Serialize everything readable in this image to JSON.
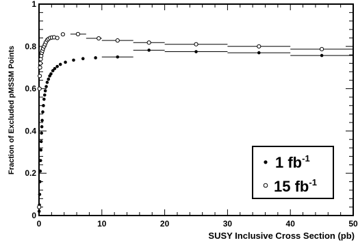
{
  "chart_data": {
    "type": "scatter",
    "title": "",
    "xlabel": "SUSY Inclusive Cross Section (pb)",
    "ylabel": "Fraction of Excluded pMSSM Points",
    "xlim": [
      0,
      50
    ],
    "ylim": [
      0,
      1
    ],
    "x_ticks": [
      0,
      10,
      20,
      30,
      40,
      50
    ],
    "x_tick_labels": [
      "0",
      "10",
      "20",
      "30",
      "40",
      "50"
    ],
    "y_ticks": [
      0,
      0.2,
      0.4,
      0.6,
      0.8,
      1
    ],
    "y_tick_labels": [
      "0",
      "0.2",
      "0.4",
      "0.6",
      "0.8",
      "1"
    ],
    "grid": false,
    "legend_position": "bottom-right",
    "series": [
      {
        "name": "1 fb",
        "name_superscript": "-1",
        "marker": "filled-circle",
        "color": "#000000",
        "points": [
          {
            "x": 0.02,
            "y": 0.02
          },
          {
            "x": 0.06,
            "y": 0.05
          },
          {
            "x": 0.1,
            "y": 0.1
          },
          {
            "x": 0.15,
            "y": 0.16
          },
          {
            "x": 0.2,
            "y": 0.21
          },
          {
            "x": 0.25,
            "y": 0.26
          },
          {
            "x": 0.3,
            "y": 0.31
          },
          {
            "x": 0.35,
            "y": 0.35
          },
          {
            "x": 0.4,
            "y": 0.39
          },
          {
            "x": 0.45,
            "y": 0.42
          },
          {
            "x": 0.5,
            "y": 0.45
          },
          {
            "x": 0.6,
            "y": 0.49
          },
          {
            "x": 0.7,
            "y": 0.52
          },
          {
            "x": 0.8,
            "y": 0.55
          },
          {
            "x": 0.9,
            "y": 0.57
          },
          {
            "x": 1.0,
            "y": 0.59
          },
          {
            "x": 1.15,
            "y": 0.61
          },
          {
            "x": 1.3,
            "y": 0.63
          },
          {
            "x": 1.5,
            "y": 0.645
          },
          {
            "x": 1.7,
            "y": 0.66
          },
          {
            "x": 1.9,
            "y": 0.67
          },
          {
            "x": 2.2,
            "y": 0.685
          },
          {
            "x": 2.5,
            "y": 0.695
          },
          {
            "x": 2.9,
            "y": 0.705
          },
          {
            "x": 3.4,
            "y": 0.715
          },
          {
            "x": 4.2,
            "y": 0.725
          },
          {
            "x": 5.5,
            "y": 0.735
          },
          {
            "x": 7.0,
            "y": 0.742
          },
          {
            "x": 9.0,
            "y": 0.746
          },
          {
            "x": 12.5,
            "y": 0.75
          },
          {
            "x": 17.5,
            "y": 0.782
          },
          {
            "x": 25.0,
            "y": 0.775
          },
          {
            "x": 35.0,
            "y": 0.77
          },
          {
            "x": 45.0,
            "y": 0.757
          }
        ]
      },
      {
        "name": "15 fb",
        "name_superscript": "-1",
        "marker": "open-circle",
        "color": "#000000",
        "points": [
          {
            "x": 0.02,
            "y": 0.04
          },
          {
            "x": 0.08,
            "y": 0.6
          },
          {
            "x": 0.12,
            "y": 0.66
          },
          {
            "x": 0.17,
            "y": 0.7
          },
          {
            "x": 0.22,
            "y": 0.72
          },
          {
            "x": 0.28,
            "y": 0.74
          },
          {
            "x": 0.35,
            "y": 0.755
          },
          {
            "x": 0.45,
            "y": 0.77
          },
          {
            "x": 0.55,
            "y": 0.78
          },
          {
            "x": 0.65,
            "y": 0.79
          },
          {
            "x": 0.8,
            "y": 0.8
          },
          {
            "x": 0.95,
            "y": 0.81
          },
          {
            "x": 1.1,
            "y": 0.82
          },
          {
            "x": 1.3,
            "y": 0.83
          },
          {
            "x": 1.5,
            "y": 0.835
          },
          {
            "x": 1.75,
            "y": 0.84
          },
          {
            "x": 2.05,
            "y": 0.842
          },
          {
            "x": 2.4,
            "y": 0.843
          },
          {
            "x": 2.9,
            "y": 0.84
          },
          {
            "x": 3.8,
            "y": 0.857
          },
          {
            "x": 6.2,
            "y": 0.858
          },
          {
            "x": 9.5,
            "y": 0.838
          },
          {
            "x": 12.5,
            "y": 0.828
          },
          {
            "x": 17.5,
            "y": 0.818
          },
          {
            "x": 25.0,
            "y": 0.81
          },
          {
            "x": 35.0,
            "y": 0.8
          },
          {
            "x": 45.0,
            "y": 0.787
          }
        ]
      }
    ],
    "horizontal_bins": [
      {
        "series": 0,
        "x_min": 10,
        "x_max": 15,
        "y": 0.75
      },
      {
        "series": 0,
        "x_min": 15,
        "x_max": 20,
        "y": 0.782
      },
      {
        "series": 0,
        "x_min": 20,
        "x_max": 30,
        "y": 0.775
      },
      {
        "series": 0,
        "x_min": 30,
        "x_max": 40,
        "y": 0.77
      },
      {
        "series": 0,
        "x_min": 40,
        "x_max": 50,
        "y": 0.757
      },
      {
        "series": 1,
        "x_min": 5,
        "x_max": 7.5,
        "y": 0.858
      },
      {
        "series": 1,
        "x_min": 7.5,
        "x_max": 10,
        "y": 0.838
      },
      {
        "series": 1,
        "x_min": 10,
        "x_max": 15,
        "y": 0.828
      },
      {
        "series": 1,
        "x_min": 15,
        "x_max": 20,
        "y": 0.818
      },
      {
        "series": 1,
        "x_min": 20,
        "x_max": 30,
        "y": 0.81
      },
      {
        "series": 1,
        "x_min": 30,
        "x_max": 40,
        "y": 0.8
      },
      {
        "series": 1,
        "x_min": 40,
        "x_max": 50,
        "y": 0.787
      }
    ]
  }
}
